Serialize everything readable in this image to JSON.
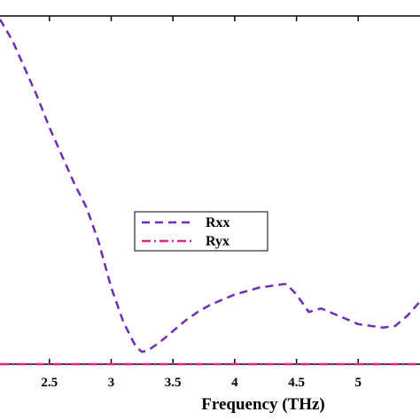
{
  "chart_data": {
    "type": "line",
    "title": "",
    "xlabel": "Frequency (THz)",
    "ylabel": "",
    "xlim": [
      2.1,
      5.5
    ],
    "ylim": [
      0,
      1
    ],
    "x_ticks": [
      2.5,
      3,
      3.5,
      4,
      4.5,
      5
    ],
    "x_tick_labels": [
      "2.5",
      "3",
      "3.5",
      "4",
      "4.5",
      "5"
    ],
    "grid": false,
    "legend_position": "center",
    "series": [
      {
        "name": "Rxx",
        "color": "#6a2fb5",
        "line_style": "dashed",
        "x": [
          2.1,
          2.2,
          2.3,
          2.4,
          2.5,
          2.6,
          2.7,
          2.8,
          2.9,
          3.0,
          3.1,
          3.2,
          3.25,
          3.3,
          3.4,
          3.5,
          3.6,
          3.7,
          3.8,
          3.9,
          4.0,
          4.1,
          4.2,
          4.3,
          4.4,
          4.42,
          4.5,
          4.6,
          4.7,
          4.8,
          4.9,
          5.0,
          5.1,
          5.2,
          5.3,
          5.4,
          5.5
        ],
        "y": [
          0.99,
          0.93,
          0.85,
          0.77,
          0.68,
          0.6,
          0.52,
          0.45,
          0.35,
          0.22,
          0.12,
          0.05,
          0.035,
          0.04,
          0.065,
          0.095,
          0.125,
          0.15,
          0.17,
          0.185,
          0.2,
          0.21,
          0.22,
          0.225,
          0.23,
          0.23,
          0.2,
          0.15,
          0.16,
          0.145,
          0.13,
          0.115,
          0.11,
          0.105,
          0.11,
          0.14,
          0.18
        ]
      },
      {
        "name": "Ryx",
        "color": "#e0218a",
        "line_style": "dash-dot",
        "x": [
          2.1,
          2.5,
          3.0,
          3.5,
          4.0,
          4.5,
          5.0,
          5.5
        ],
        "y": [
          0.0,
          0.0,
          0.0,
          0.0,
          0.0,
          0.0,
          0.0,
          0.0
        ]
      }
    ]
  }
}
